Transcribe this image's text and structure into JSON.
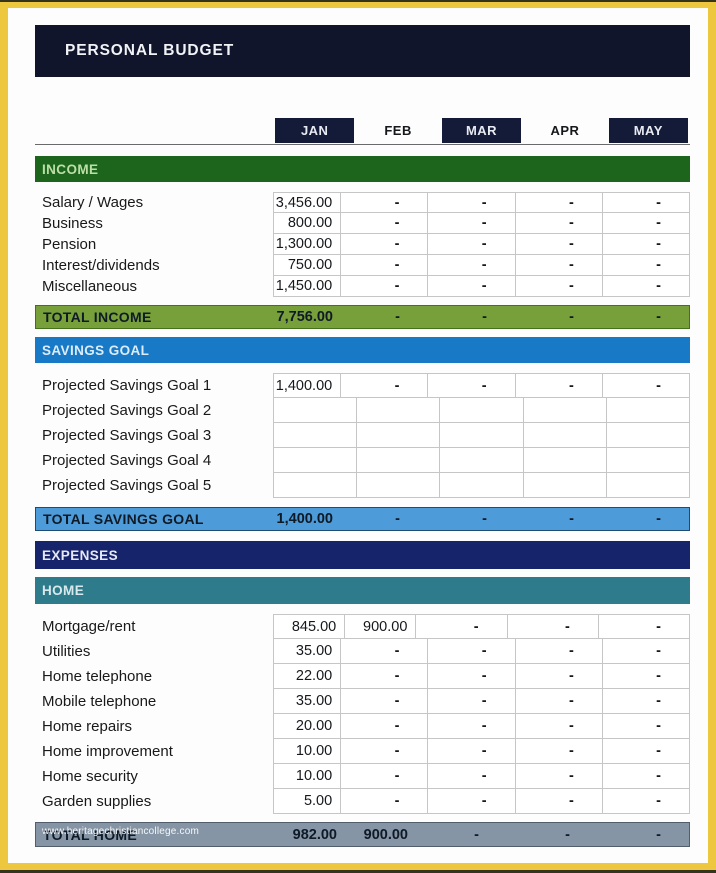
{
  "title": "PERSONAL BUDGET",
  "months": [
    "JAN",
    "FEB",
    "MAR",
    "APR",
    "MAY"
  ],
  "income": {
    "header": "INCOME",
    "rows": [
      {
        "label": "Salary / Wages",
        "values": [
          "3,456.00",
          "-",
          "-",
          "-",
          "-"
        ]
      },
      {
        "label": "Business",
        "values": [
          "800.00",
          "-",
          "-",
          "-",
          "-"
        ]
      },
      {
        "label": "Pension",
        "values": [
          "1,300.00",
          "-",
          "-",
          "-",
          "-"
        ]
      },
      {
        "label": "Interest/dividends",
        "values": [
          "750.00",
          "-",
          "-",
          "-",
          "-"
        ]
      },
      {
        "label": "Miscellaneous",
        "values": [
          "1,450.00",
          "-",
          "-",
          "-",
          "-"
        ]
      }
    ],
    "total": {
      "label": "TOTAL INCOME",
      "values": [
        "7,756.00",
        "-",
        "-",
        "-",
        "-"
      ]
    }
  },
  "savings": {
    "header": "SAVINGS GOAL",
    "rows": [
      {
        "label": "Projected Savings Goal 1",
        "values": [
          "1,400.00",
          "-",
          "-",
          "-",
          "-"
        ]
      },
      {
        "label": "Projected Savings Goal 2",
        "values": [
          "",
          "",
          "",
          "",
          ""
        ]
      },
      {
        "label": "Projected Savings Goal 3",
        "values": [
          "",
          "",
          "",
          "",
          ""
        ]
      },
      {
        "label": "Projected Savings Goal 4",
        "values": [
          "",
          "",
          "",
          "",
          ""
        ]
      },
      {
        "label": "Projected Savings Goal 5",
        "values": [
          "",
          "",
          "",
          "",
          ""
        ]
      }
    ],
    "total": {
      "label": "TOTAL SAVINGS GOAL",
      "values": [
        "1,400.00",
        "-",
        "-",
        "-",
        "-"
      ]
    }
  },
  "expenses": {
    "header": "EXPENSES"
  },
  "home": {
    "header": "HOME",
    "rows": [
      {
        "label": "Mortgage/rent",
        "values": [
          "845.00",
          "900.00",
          "-",
          "-",
          "-"
        ]
      },
      {
        "label": "Utilities",
        "values": [
          "35.00",
          "-",
          "-",
          "-",
          "-"
        ]
      },
      {
        "label": "Home telephone",
        "values": [
          "22.00",
          "-",
          "-",
          "-",
          "-"
        ]
      },
      {
        "label": "Mobile telephone",
        "values": [
          "35.00",
          "-",
          "-",
          "-",
          "-"
        ]
      },
      {
        "label": "Home repairs",
        "values": [
          "20.00",
          "-",
          "-",
          "-",
          "-"
        ]
      },
      {
        "label": "Home improvement",
        "values": [
          "10.00",
          "-",
          "-",
          "-",
          "-"
        ]
      },
      {
        "label": "Home security",
        "values": [
          "10.00",
          "-",
          "-",
          "-",
          "-"
        ]
      },
      {
        "label": "Garden supplies",
        "values": [
          "5.00",
          "-",
          "-",
          "-",
          "-"
        ]
      }
    ],
    "total": {
      "label": "TOTAL HOME",
      "values": [
        "982.00",
        "900.00",
        "-",
        "-",
        "-"
      ]
    }
  },
  "watermark": "www.heritagechristiancollege.com",
  "colors": {
    "frame-border": "#edc83e",
    "title-bg": "#10152b",
    "tab-dark": "#141b38",
    "income-bg": "#1d651d",
    "income-total-bg": "#77a03a",
    "savings-bg": "#1879c6",
    "savings-total-bg": "#4d9bd8",
    "expenses-bg": "#16246b",
    "home-bg": "#2e7b8b",
    "home-total-bg": "#8695a6",
    "grid-line": "#c6c6c6",
    "ink": "#1b1b1b",
    "total-ink": "#0f1a26"
  }
}
